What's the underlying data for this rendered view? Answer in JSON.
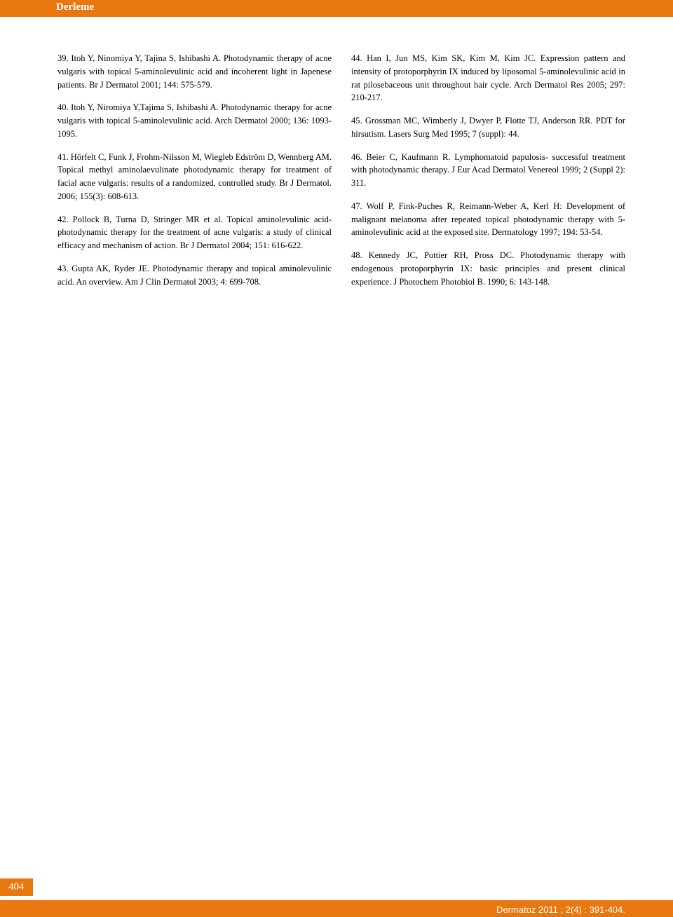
{
  "header": {
    "label": "Derleme"
  },
  "leftColumn": {
    "ref39": "39. Itoh Y, Ninomiya Y, Tajina S, Ishibashi A. Photodynamic therapy of acne vulgaris with topical 5-aminolevulinic acid and incoherent light in Japenese patients. Br J Dermatol 2001; 144: 575-579.",
    "ref40": "40. Itoh Y, Niromiya Y,Tajima S, Ishibashi A. Photodynamic therapy for acne vulgaris with topical 5-aminolevulinic acid. Arch Dermatol 2000; 136: 1093-1095.",
    "ref41": "41. Hörfelt C, Funk J, Frohm-Nilsson M, Wiegleb Edström D, Wennberg AM. Topical methyl aminolaevulinate photodynamic therapy for treatment of facial acne vulgaris: results of a randomized, controlled study. Br J Dermatol. 2006; 155(3): 608-613.",
    "ref42": "42. Pollock B, Turna D, Stringer MR et al. Topical aminolevulinic acid-photodynamic therapy for the treatment of acne vulgaris: a study of clinical efficacy and mechanism of action. Br J Dermatol 2004; 151: 616-622.",
    "ref43": "43. Gupta AK, Ryder JE. Photodynamic therapy and topical aminolevulinic acid. An overview. Am J Clin Dermatol 2003; 4: 699-708."
  },
  "rightColumn": {
    "ref44": "44. Han I, Jun MS, Kim SK, Kim M, Kim JC. Expression pattern and intensity of protoporphyrin IX induced by liposomal 5-aminolevulinic acid in rat pilosebaceous unit throughout hair cycle. Arch Dermatol Res 2005; 297: 210-217.",
    "ref45": "45. Grossman MC, Wimberly J, Dwyer P, Flotte TJ, Anderson RR. PDT for hirsutism. Lasers Surg Med 1995; 7 (suppl): 44.",
    "ref46": "46. Beier C, Kaufmann R. Lymphomatoid papulosis- successful treatment with photodynamic therapy. J Eur Acad Dermatol Venereol 1999; 2 (Suppl 2): 311.",
    "ref47": "47. Wolf P, Fink-Puches R, Reimann-Weber A, Kerl H: Development of malignant melanoma after repeated topical photodynamic therapy with 5-aminolevulinic acid at the exposed site. Dermatology 1997; 194: 53-54.",
    "ref48": "48. Kennedy JC, Pottier RH, Pross DC. Photodynamic therapy with endogenous protoporphyrin IX: basic principles and present clinical experience. J Photochem Photobiol B. 1990; 6: 143-148."
  },
  "pageNumber": "404",
  "footer": {
    "citation": "Dermatoz 2011 ; 2(4) : 391-404."
  },
  "colors": {
    "accent": "#e8770f",
    "text": "#000000",
    "background": "#ffffff",
    "headerText": "#ffffff"
  }
}
